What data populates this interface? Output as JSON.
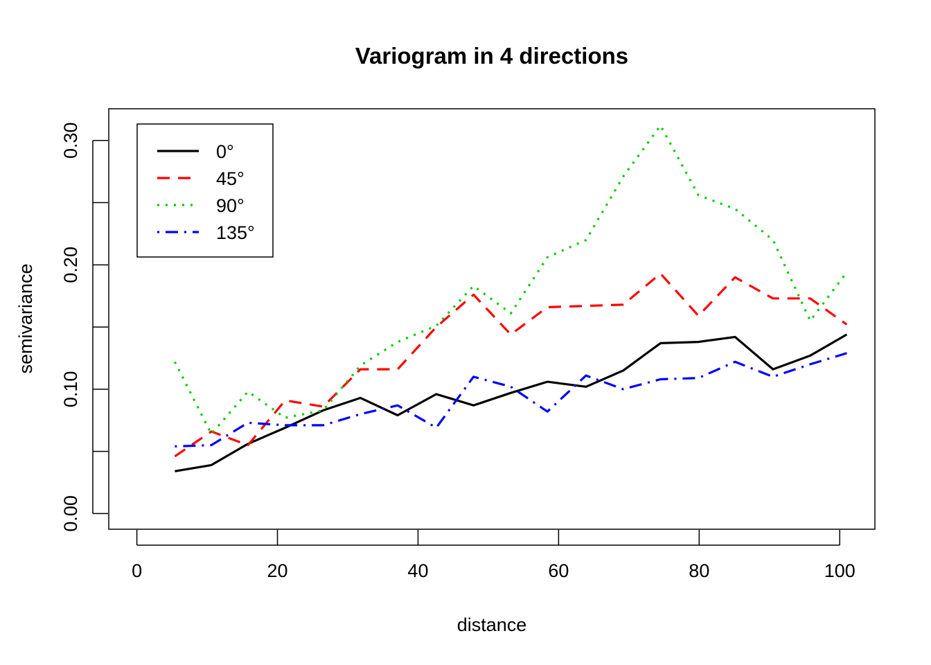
{
  "chart_data": {
    "type": "line",
    "title": "Variogram in 4 directions",
    "xlabel": "distance",
    "ylabel": "semivariance",
    "xlim": [
      -4,
      105
    ],
    "ylim": [
      -0.0126,
      0.3255
    ],
    "xticks": [
      0,
      20,
      40,
      60,
      80,
      100
    ],
    "yticks": [
      0.0,
      0.05,
      0.1,
      0.15,
      0.2,
      0.25,
      0.3
    ],
    "ytick_labels": [
      "0.00",
      "",
      "0.10",
      "",
      "0.20",
      "",
      "0.30"
    ],
    "grid": false,
    "legend_position": "top-left",
    "x": [
      5.4,
      10.6,
      15.8,
      21.1,
      26.5,
      31.8,
      37.1,
      42.6,
      47.9,
      53.2,
      58.4,
      63.9,
      69.2,
      74.5,
      79.9,
      85.1,
      90.5,
      95.8,
      101.0
    ],
    "series": [
      {
        "name": "0°",
        "color": "#000000",
        "dash": "solid",
        "values": [
          0.034,
          0.039,
          0.056,
          0.069,
          0.083,
          0.093,
          0.079,
          0.096,
          0.087,
          0.097,
          0.106,
          0.102,
          0.115,
          0.137,
          0.138,
          0.142,
          0.116,
          0.127,
          0.144
        ]
      },
      {
        "name": "45°",
        "color": "#ff0000",
        "dash": "dashed",
        "values": [
          0.046,
          0.066,
          0.055,
          0.091,
          0.086,
          0.116,
          0.116,
          0.15,
          0.176,
          0.144,
          0.166,
          0.167,
          0.168,
          0.193,
          0.159,
          0.19,
          0.173,
          0.173,
          0.152
        ]
      },
      {
        "name": "90°",
        "color": "#00cd00",
        "dash": "dotted",
        "values": [
          0.122,
          0.064,
          0.098,
          0.077,
          0.083,
          0.119,
          0.138,
          0.151,
          0.183,
          0.161,
          0.206,
          0.22,
          0.271,
          0.312,
          0.256,
          0.245,
          0.22,
          0.155,
          0.194
        ]
      },
      {
        "name": "135°",
        "color": "#0000ff",
        "dash": "dotdash",
        "values": [
          0.054,
          0.055,
          0.073,
          0.071,
          0.071,
          0.08,
          0.087,
          0.069,
          0.11,
          0.102,
          0.082,
          0.111,
          0.1,
          0.108,
          0.109,
          0.122,
          0.11,
          0.12,
          0.129
        ]
      }
    ]
  }
}
